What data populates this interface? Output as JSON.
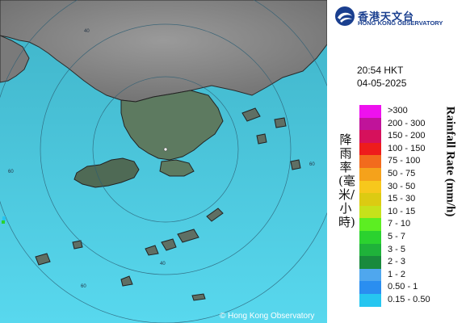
{
  "map": {
    "copyright": "© Hong Kong Observatory",
    "range_rings": [
      {
        "value": "40"
      },
      {
        "value": "60"
      },
      {
        "value": "40"
      },
      {
        "value": "60"
      },
      {
        "value": "60"
      }
    ]
  },
  "logo": {
    "name_cn": "香港天文台",
    "name_en": "HONG KONG OBSERVATORY",
    "colors": {
      "primary": "#1a3f8f"
    }
  },
  "timestamp": {
    "time": "20:54 HKT",
    "date": "04-05-2025"
  },
  "legend": {
    "title_cn": "降雨率(毫米/小時)",
    "title_en": "Rainfall Rate (mm/h)",
    "items": [
      {
        "label": ">300",
        "color": "#ee11ee"
      },
      {
        "label": "200 - 300",
        "color": "#c0139a"
      },
      {
        "label": "150 - 200",
        "color": "#d6115c"
      },
      {
        "label": "100 - 150",
        "color": "#ee1c1c"
      },
      {
        "label": "75 - 100",
        "color": "#f26b1d"
      },
      {
        "label": "50 - 75",
        "color": "#f5a21b"
      },
      {
        "label": "30 - 50",
        "color": "#f7c81c"
      },
      {
        "label": "15 - 30",
        "color": "#dccb12"
      },
      {
        "label": "10 - 15",
        "color": "#c6e21b"
      },
      {
        "label": "7 - 10",
        "color": "#5cee22"
      },
      {
        "label": "5 - 7",
        "color": "#2bd22f"
      },
      {
        "label": "3 - 5",
        "color": "#1fb23a"
      },
      {
        "label": "2 - 3",
        "color": "#198a3c"
      },
      {
        "label": "1 - 2",
        "color": "#4fa7ee"
      },
      {
        "label": "0.50 - 1",
        "color": "#2a8ef0"
      },
      {
        "label": "0.15 - 0.50",
        "color": "#26c6f0"
      }
    ]
  }
}
